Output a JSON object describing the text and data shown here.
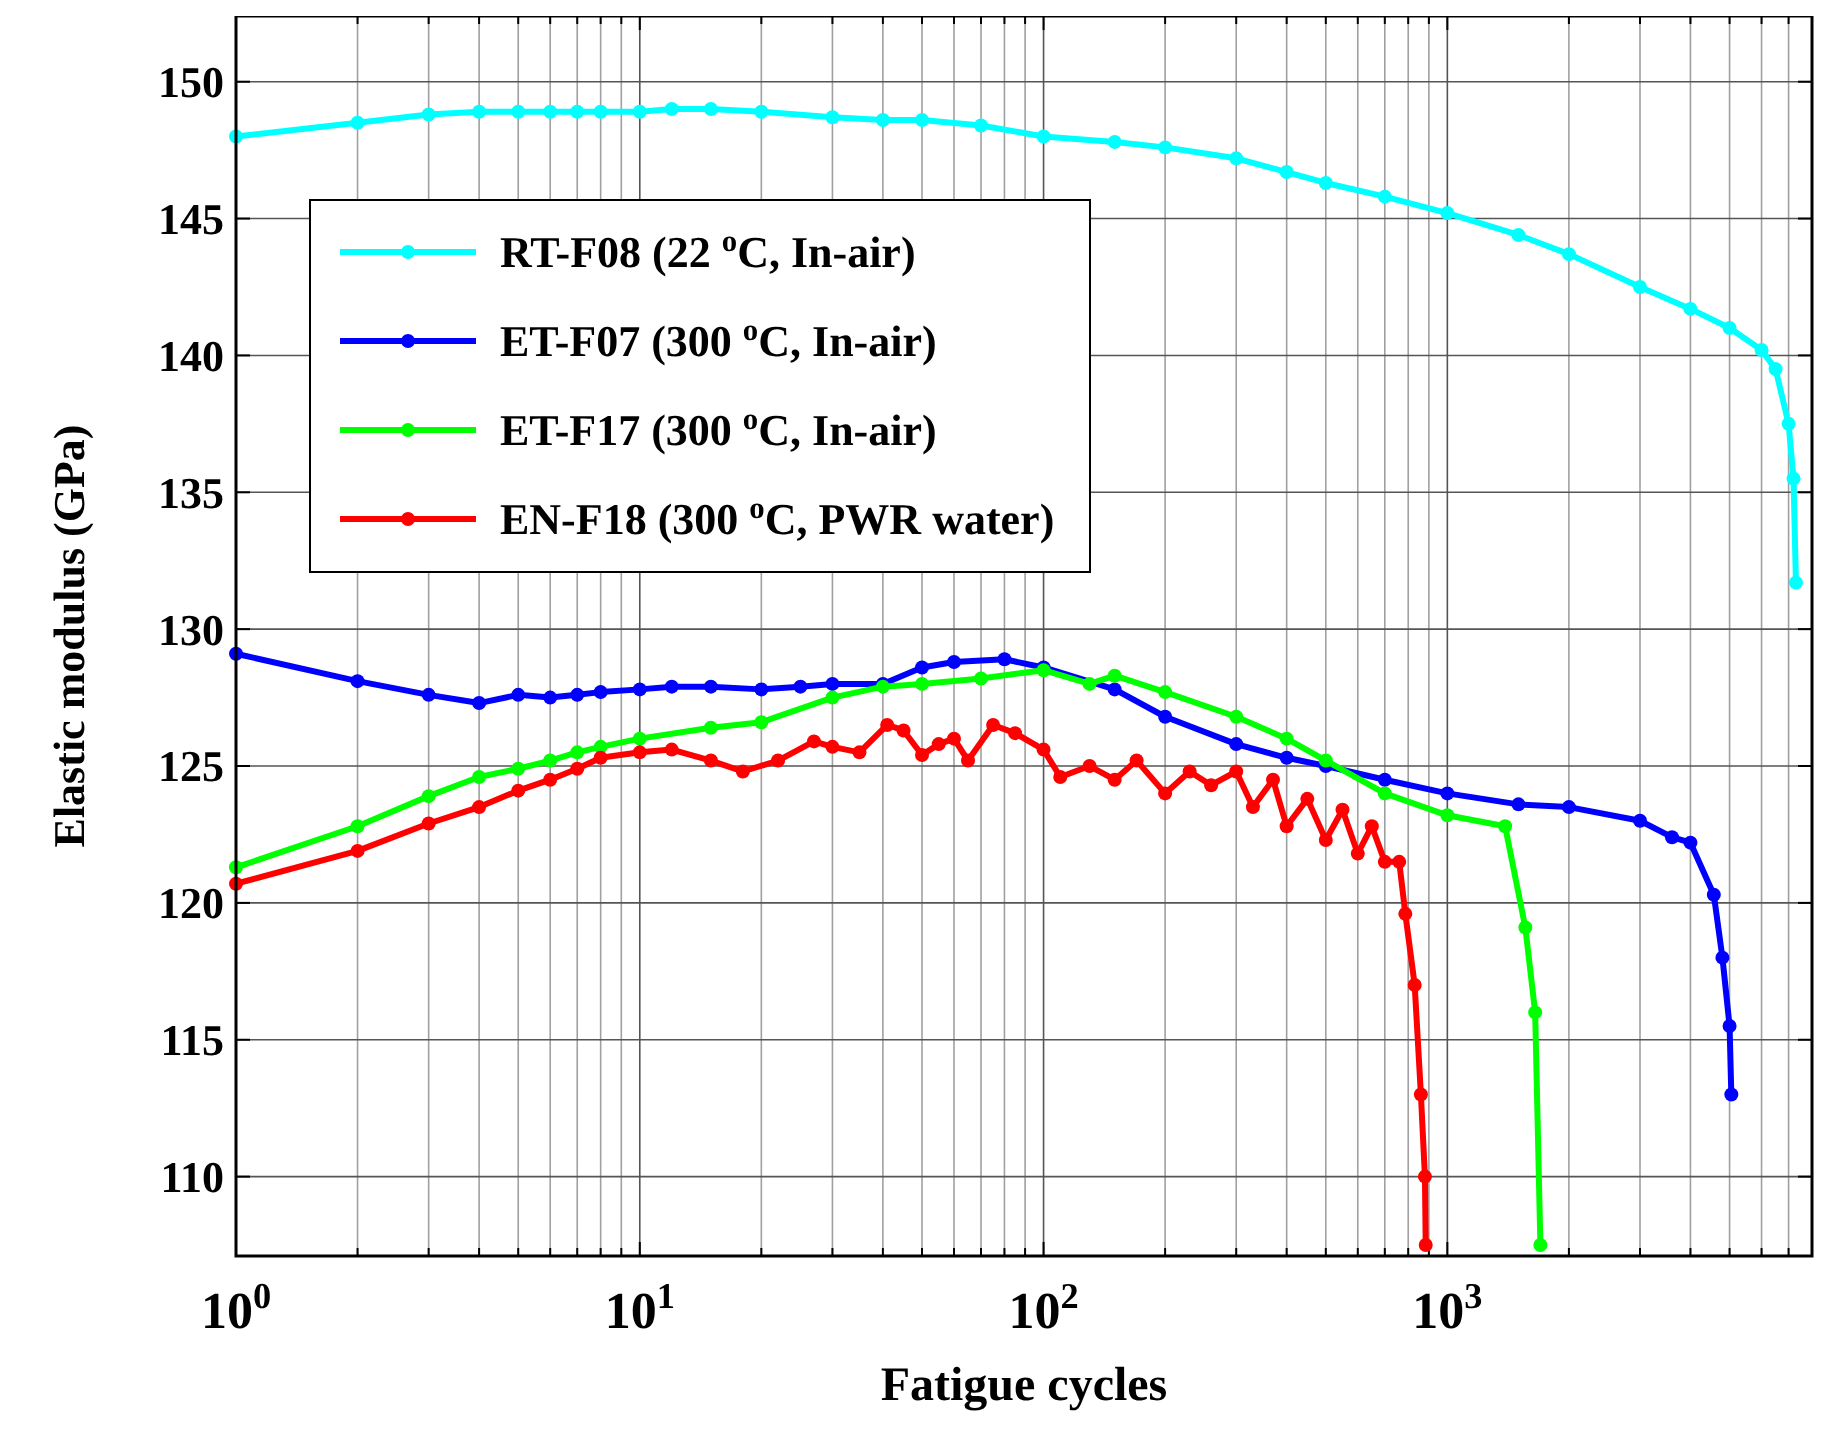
{
  "chart_data": {
    "type": "line",
    "xlabel": "Fatigue cycles",
    "ylabel": "Elastic modulus (GPa)",
    "log": "x",
    "grid": true,
    "legend": "top left",
    "marker": "circle",
    "line_style": "solid",
    "xlim": [
      1,
      8000
    ],
    "ylim": [
      107.1,
      152.4
    ],
    "xticks": [
      {
        "value": 1,
        "label": "10$^{0}$"
      },
      {
        "value": 2,
        "label": null
      },
      {
        "value": 3,
        "label": null
      },
      {
        "value": 4,
        "label": null
      },
      {
        "value": 5,
        "label": null
      },
      {
        "value": 6,
        "label": null
      },
      {
        "value": 7,
        "label": null
      },
      {
        "value": 8,
        "label": null
      },
      {
        "value": 9,
        "label": null
      },
      {
        "value": 10,
        "label": "10$^{1}$"
      },
      {
        "value": 20,
        "label": null
      },
      {
        "value": 30,
        "label": null
      },
      {
        "value": 40,
        "label": null
      },
      {
        "value": 50,
        "label": null
      },
      {
        "value": 60,
        "label": null
      },
      {
        "value": 70,
        "label": null
      },
      {
        "value": 80,
        "label": null
      },
      {
        "value": 90,
        "label": null
      },
      {
        "value": 100,
        "label": "10$^{2}$"
      },
      {
        "value": 200,
        "label": null
      },
      {
        "value": 300,
        "label": null
      },
      {
        "value": 400,
        "label": null
      },
      {
        "value": 500,
        "label": null
      },
      {
        "value": 600,
        "label": null
      },
      {
        "value": 700,
        "label": null
      },
      {
        "value": 800,
        "label": null
      },
      {
        "value": 900,
        "label": null
      },
      {
        "value": 1000,
        "label": "10$^{3}$"
      },
      {
        "value": 2000,
        "label": null
      },
      {
        "value": 3000,
        "label": null
      },
      {
        "value": 4000,
        "label": null
      },
      {
        "value": 5000,
        "label": null
      },
      {
        "value": 6000,
        "label": null
      },
      {
        "value": 7000,
        "label": null
      },
      {
        "value": 8000,
        "label": null
      }
    ],
    "yticks": [
      110,
      115,
      120,
      125,
      130,
      135,
      140,
      145,
      150
    ],
    "series": [
      {
        "name": "RT-F08 (22 $^{o}$C, In-air)",
        "color": "#00ffff",
        "x": [
          1,
          2,
          3,
          4,
          5,
          6,
          7,
          8,
          10,
          12,
          15,
          20,
          30,
          40,
          50,
          70,
          100,
          150,
          200,
          300,
          400,
          500,
          700,
          1000,
          1500,
          2000,
          3000,
          4000,
          5000,
          6000,
          6500,
          7000,
          7200,
          7300
        ],
        "values": [
          148,
          148.5,
          148.8,
          148.9,
          148.9,
          148.9,
          148.9,
          148.9,
          148.9,
          149,
          149,
          148.9,
          148.7,
          148.6,
          148.6,
          148.4,
          148,
          147.8,
          147.6,
          147.2,
          146.7,
          146.3,
          145.8,
          145.2,
          144.4,
          143.7,
          142.5,
          141.7,
          141,
          140.2,
          139.5,
          137.5,
          135.5,
          131.7
        ]
      },
      {
        "name": "ET-F07 (300 $^{o}$C, In-air)",
        "color": "#0000ff",
        "x": [
          1,
          2,
          3,
          4,
          5,
          6,
          7,
          8,
          10,
          12,
          15,
          20,
          25,
          30,
          40,
          50,
          60,
          80,
          100,
          150,
          200,
          300,
          400,
          500,
          700,
          1000,
          1500,
          2000,
          3000,
          3600,
          4000,
          4570,
          4800,
          5000,
          5050
        ],
        "values": [
          129.1,
          128.1,
          127.6,
          127.3,
          127.6,
          127.5,
          127.6,
          127.7,
          127.8,
          127.9,
          127.9,
          127.8,
          127.9,
          128,
          128,
          128.6,
          128.8,
          128.9,
          128.6,
          127.8,
          126.8,
          125.8,
          125.3,
          125,
          124.5,
          124,
          123.6,
          123.5,
          123,
          122.4,
          122.2,
          120.3,
          118,
          115.5,
          113
        ]
      },
      {
        "name": "ET-F17 (300 $^{o}$C, In-air)",
        "color": "#00ff00",
        "x": [
          1,
          2,
          3,
          4,
          5,
          6,
          7,
          8,
          10,
          15,
          20,
          30,
          40,
          50,
          70,
          100,
          130,
          150,
          200,
          300,
          400,
          500,
          700,
          1000,
          1390,
          1560,
          1650,
          1700
        ],
        "values": [
          121.3,
          122.8,
          123.9,
          124.6,
          124.9,
          125.2,
          125.5,
          125.7,
          126,
          126.4,
          126.6,
          127.5,
          127.9,
          128,
          128.2,
          128.5,
          128,
          128.3,
          127.7,
          126.8,
          126,
          125.2,
          124,
          123.2,
          122.8,
          119.1,
          116,
          107.5
        ]
      },
      {
        "name": "EN-F18 (300 $^{o}$C, PWR water)",
        "color": "#ff0000",
        "x": [
          1,
          2,
          3,
          4,
          5,
          6,
          7,
          8,
          10,
          12,
          15,
          18,
          22,
          27,
          30,
          35,
          41,
          45,
          50,
          55,
          60,
          65,
          75,
          85,
          100,
          110,
          130,
          150,
          170,
          200,
          230,
          260,
          300,
          330,
          370,
          400,
          450,
          500,
          550,
          600,
          650,
          700,
          760,
          787,
          830,
          860,
          880,
          884
        ],
        "values": [
          120.7,
          121.9,
          122.9,
          123.5,
          124.1,
          124.5,
          124.9,
          125.3,
          125.5,
          125.6,
          125.2,
          124.8,
          125.2,
          125.9,
          125.7,
          125.5,
          126.5,
          126.3,
          125.4,
          125.8,
          126,
          125.2,
          126.5,
          126.2,
          125.6,
          124.6,
          125,
          124.5,
          125.2,
          124,
          124.8,
          124.3,
          124.8,
          123.5,
          124.5,
          122.8,
          123.8,
          122.3,
          123.4,
          121.8,
          122.8,
          121.5,
          121.5,
          119.6,
          117,
          113,
          110,
          107.5
        ]
      }
    ]
  }
}
